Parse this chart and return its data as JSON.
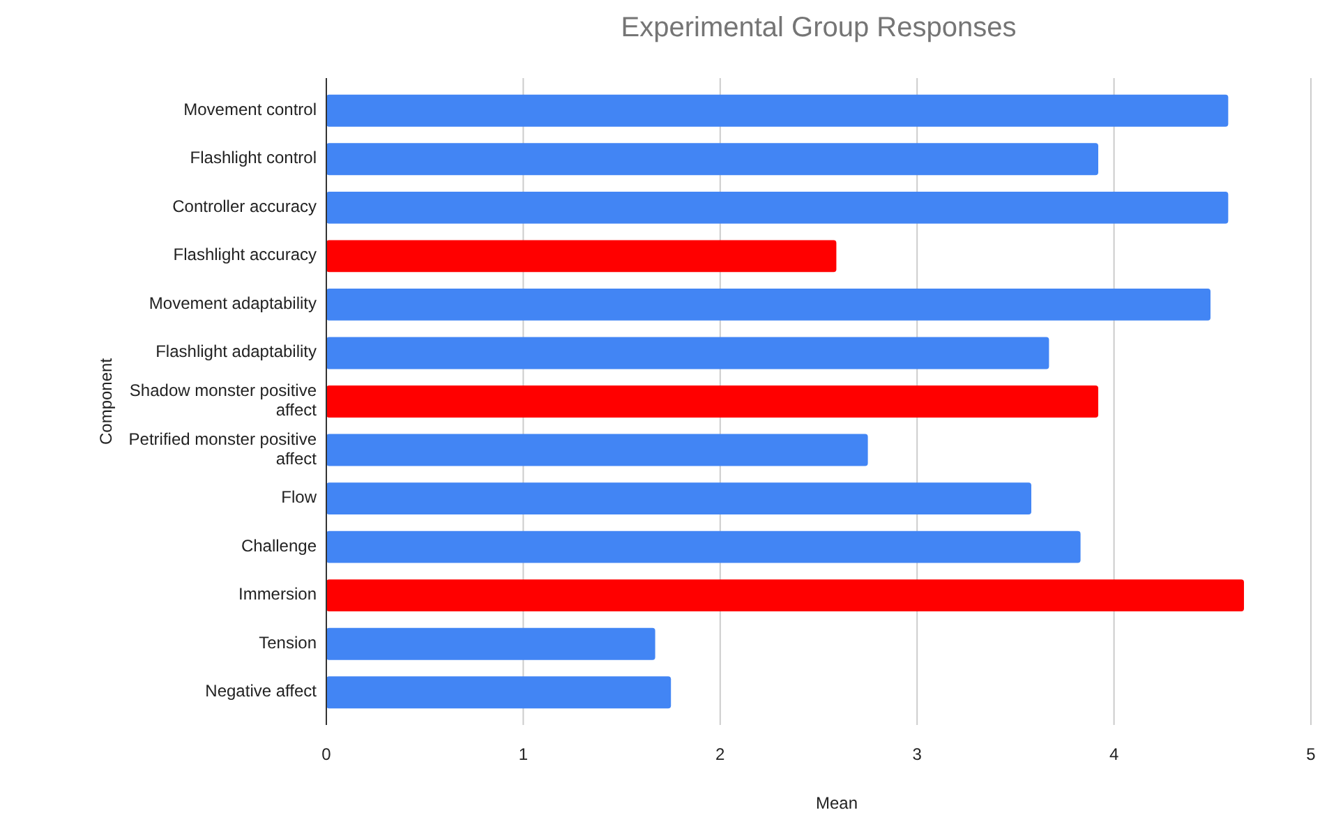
{
  "chart_data": {
    "type": "bar",
    "orientation": "horizontal",
    "title": "Experimental Group Responses",
    "xlabel": "Mean",
    "ylabel": "Component",
    "categories": [
      "Movement control",
      "Flashlight control",
      "Controller accuracy",
      "Flashlight accuracy",
      "Movement adaptability",
      "Flashlight adaptability",
      "Shadow monster positive affect",
      "Petrified monster positive affect",
      "Flow",
      "Challenge",
      "Immersion",
      "Tension",
      "Negative affect"
    ],
    "values": [
      4.58,
      3.92,
      4.58,
      2.59,
      4.49,
      3.67,
      3.92,
      2.75,
      3.58,
      3.83,
      4.66,
      1.67,
      1.75
    ],
    "colors": [
      "#4285f4",
      "#4285f4",
      "#4285f4",
      "#ff0000",
      "#4285f4",
      "#4285f4",
      "#ff0000",
      "#4285f4",
      "#4285f4",
      "#4285f4",
      "#ff0000",
      "#4285f4",
      "#4285f4"
    ],
    "xlim": [
      0,
      5
    ],
    "xticks": [
      0,
      1,
      2,
      3,
      4,
      5
    ],
    "grid": "x"
  }
}
